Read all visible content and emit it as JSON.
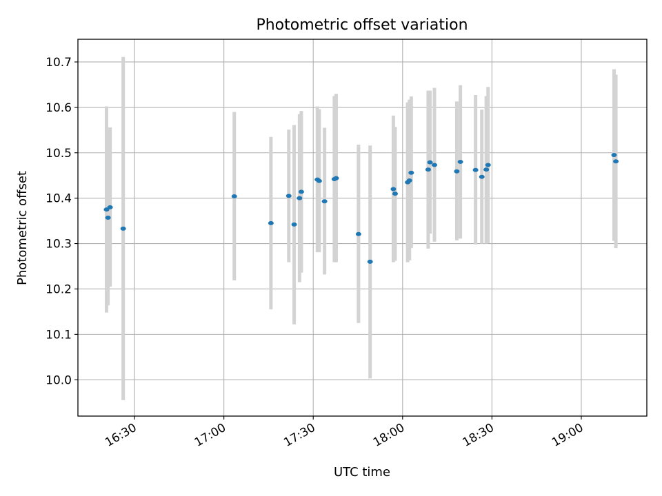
{
  "chart_data": {
    "type": "scatter",
    "title": "Photometric offset variation",
    "xlabel": "UTC time",
    "ylabel": "Photometric offset",
    "xlim": [
      "16:11",
      "19:22"
    ],
    "ylim": [
      9.92,
      10.75
    ],
    "x_ticks": [
      "16:30",
      "17:00",
      "17:30",
      "18:00",
      "18:30",
      "19:00"
    ],
    "y_ticks": [
      10.0,
      10.1,
      10.2,
      10.3,
      10.4,
      10.5,
      10.6,
      10.7
    ],
    "grid": true,
    "marker_color": "#1f77b4",
    "errorbar_color": "#d3d3d3",
    "points": [
      {
        "t": "16:20.6",
        "y": 10.375,
        "lo": 10.148,
        "hi": 10.602
      },
      {
        "t": "16:21.1",
        "y": 10.357,
        "lo": 10.164,
        "hi": 10.551
      },
      {
        "t": "16:21.8",
        "y": 10.38,
        "lo": 10.205,
        "hi": 10.556
      },
      {
        "t": "16:26.2",
        "y": 10.333,
        "lo": 9.955,
        "hi": 10.711
      },
      {
        "t": "17:03.5",
        "y": 10.404,
        "lo": 10.219,
        "hi": 10.59
      },
      {
        "t": "17:15.8",
        "y": 10.345,
        "lo": 10.155,
        "hi": 10.535
      },
      {
        "t": "17:21.8",
        "y": 10.405,
        "lo": 10.259,
        "hi": 10.551
      },
      {
        "t": "17:23.6",
        "y": 10.342,
        "lo": 10.122,
        "hi": 10.561
      },
      {
        "t": "17:25.4",
        "y": 10.4,
        "lo": 10.215,
        "hi": 10.585
      },
      {
        "t": "17:26.0",
        "y": 10.414,
        "lo": 10.236,
        "hi": 10.592
      },
      {
        "t": "17:31.4",
        "y": 10.441,
        "lo": 10.281,
        "hi": 10.602
      },
      {
        "t": "17:32.0",
        "y": 10.438,
        "lo": 10.281,
        "hi": 10.596
      },
      {
        "t": "17:33.8",
        "y": 10.393,
        "lo": 10.232,
        "hi": 10.555
      },
      {
        "t": "17:37.1",
        "y": 10.442,
        "lo": 10.259,
        "hi": 10.625
      },
      {
        "t": "17:37.7",
        "y": 10.444,
        "lo": 10.259,
        "hi": 10.63
      },
      {
        "t": "17:45.2",
        "y": 10.321,
        "lo": 10.125,
        "hi": 10.518
      },
      {
        "t": "17:49.1",
        "y": 10.26,
        "lo": 10.003,
        "hi": 10.516
      },
      {
        "t": "17:56.9",
        "y": 10.42,
        "lo": 10.259,
        "hi": 10.582
      },
      {
        "t": "17:57.5",
        "y": 10.41,
        "lo": 10.262,
        "hi": 10.557
      },
      {
        "t": "18:01.7",
        "y": 10.435,
        "lo": 10.259,
        "hi": 10.611
      },
      {
        "t": "18:02.3",
        "y": 10.439,
        "lo": 10.263,
        "hi": 10.617
      },
      {
        "t": "18:02.9",
        "y": 10.456,
        "lo": 10.29,
        "hi": 10.624
      },
      {
        "t": "18:08.6",
        "y": 10.463,
        "lo": 10.289,
        "hi": 10.637
      },
      {
        "t": "18:09.2",
        "y": 10.479,
        "lo": 10.322,
        "hi": 10.637
      },
      {
        "t": "18:10.7",
        "y": 10.473,
        "lo": 10.304,
        "hi": 10.643
      },
      {
        "t": "18:18.2",
        "y": 10.459,
        "lo": 10.307,
        "hi": 10.613
      },
      {
        "t": "18:19.4",
        "y": 10.48,
        "lo": 10.311,
        "hi": 10.649
      },
      {
        "t": "18:24.5",
        "y": 10.462,
        "lo": 10.298,
        "hi": 10.627
      },
      {
        "t": "18:26.6",
        "y": 10.447,
        "lo": 10.3,
        "hi": 10.595
      },
      {
        "t": "18:28.1",
        "y": 10.463,
        "lo": 10.3,
        "hi": 10.625
      },
      {
        "t": "18:28.7",
        "y": 10.473,
        "lo": 10.301,
        "hi": 10.645
      },
      {
        "t": "19:11.0",
        "y": 10.495,
        "lo": 10.306,
        "hi": 10.684
      },
      {
        "t": "19:11.6",
        "y": 10.481,
        "lo": 10.29,
        "hi": 10.672
      }
    ]
  }
}
